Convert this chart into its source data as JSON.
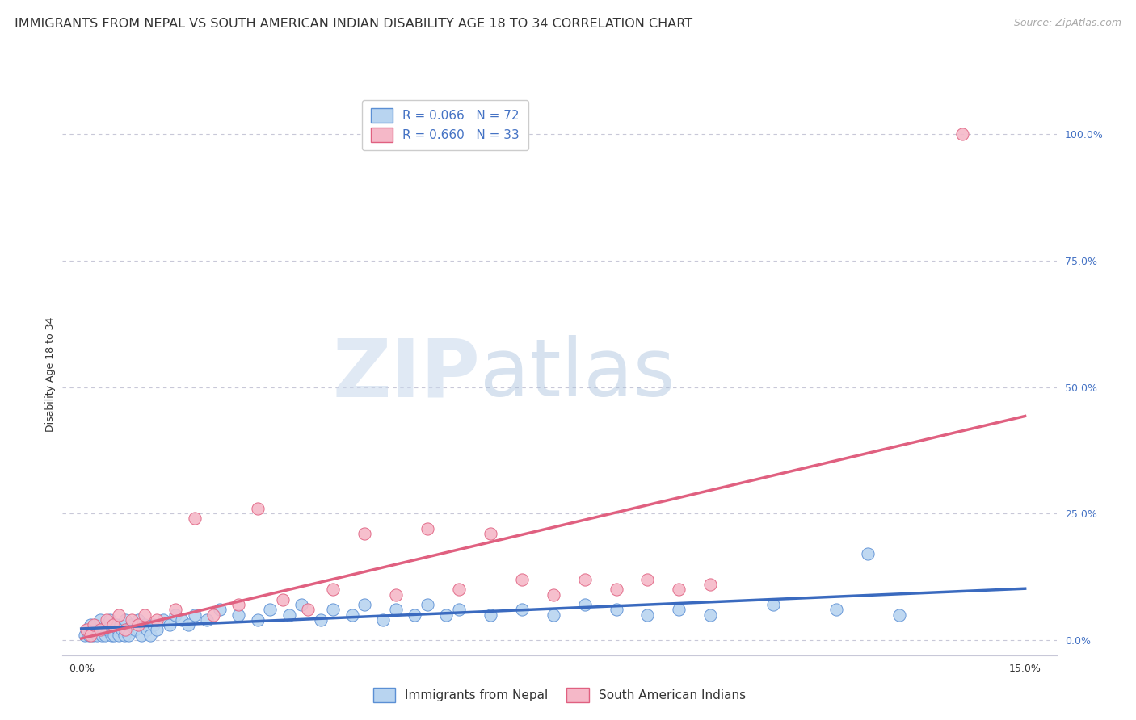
{
  "title": "IMMIGRANTS FROM NEPAL VS SOUTH AMERICAN INDIAN DISABILITY AGE 18 TO 34 CORRELATION CHART",
  "source": "Source: ZipAtlas.com",
  "ylabel": "Disability Age 18 to 34",
  "ytick_labels": [
    "0.0%",
    "25.0%",
    "50.0%",
    "75.0%",
    "100.0%"
  ],
  "ytick_values": [
    0,
    25,
    50,
    75,
    100
  ],
  "xtick_labels": [
    "0.0%",
    "15.0%"
  ],
  "xtick_values": [
    0,
    15
  ],
  "xlim": [
    -0.3,
    15.5
  ],
  "ylim": [
    -3,
    108
  ],
  "watermark_zip": "ZIP",
  "watermark_atlas": "atlas",
  "legend_series1_label": "Immigrants from Nepal",
  "legend_series1_facecolor": "#b8d4f0",
  "legend_series1_edgecolor": "#5b8fd4",
  "legend_series2_label": "South American Indians",
  "legend_series2_facecolor": "#f5b8c8",
  "legend_series2_edgecolor": "#e06080",
  "line1_color": "#3a6abf",
  "line2_color": "#e06080",
  "R1": 0.066,
  "N1": 72,
  "R2": 0.66,
  "N2": 33,
  "nepal_x": [
    0.05,
    0.1,
    0.12,
    0.15,
    0.18,
    0.2,
    0.22,
    0.25,
    0.28,
    0.3,
    0.32,
    0.35,
    0.38,
    0.4,
    0.42,
    0.45,
    0.48,
    0.5,
    0.52,
    0.55,
    0.58,
    0.6,
    0.62,
    0.65,
    0.68,
    0.7,
    0.72,
    0.75,
    0.8,
    0.85,
    0.9,
    0.95,
    1.0,
    1.05,
    1.1,
    1.15,
    1.2,
    1.3,
    1.4,
    1.5,
    1.6,
    1.7,
    1.8,
    2.0,
    2.2,
    2.5,
    2.8,
    3.0,
    3.3,
    3.5,
    3.8,
    4.0,
    4.3,
    4.5,
    4.8,
    5.0,
    5.3,
    5.5,
    5.8,
    6.0,
    6.5,
    7.0,
    7.5,
    8.0,
    8.5,
    9.0,
    9.5,
    10.0,
    11.0,
    12.0,
    13.0,
    12.5
  ],
  "nepal_y": [
    1,
    2,
    1,
    3,
    1,
    2,
    3,
    1,
    2,
    4,
    1,
    2,
    1,
    3,
    2,
    4,
    1,
    2,
    1,
    3,
    2,
    1,
    3,
    2,
    1,
    4,
    2,
    1,
    3,
    2,
    4,
    1,
    3,
    2,
    1,
    3,
    2,
    4,
    3,
    5,
    4,
    3,
    5,
    4,
    6,
    5,
    4,
    6,
    5,
    7,
    4,
    6,
    5,
    7,
    4,
    6,
    5,
    7,
    5,
    6,
    5,
    6,
    5,
    7,
    6,
    5,
    6,
    5,
    7,
    6,
    5,
    17
  ],
  "sa_x": [
    0.08,
    0.15,
    0.2,
    0.3,
    0.4,
    0.5,
    0.6,
    0.7,
    0.8,
    0.9,
    1.0,
    1.2,
    1.5,
    1.8,
    2.1,
    2.5,
    2.8,
    3.2,
    3.6,
    4.0,
    4.5,
    5.0,
    5.5,
    6.0,
    6.5,
    7.0,
    7.5,
    8.0,
    8.5,
    9.0,
    9.5,
    10.0,
    14.0
  ],
  "sa_y": [
    2,
    1,
    3,
    2,
    4,
    3,
    5,
    2,
    4,
    3,
    5,
    4,
    6,
    24,
    5,
    7,
    26,
    8,
    6,
    10,
    21,
    9,
    22,
    10,
    21,
    12,
    9,
    12,
    10,
    12,
    10,
    11,
    100
  ],
  "background_color": "#ffffff",
  "grid_color": "#c8c8d8",
  "title_fontsize": 11.5,
  "source_fontsize": 9,
  "axis_label_fontsize": 9,
  "tick_fontsize": 9,
  "legend_fontsize": 11
}
